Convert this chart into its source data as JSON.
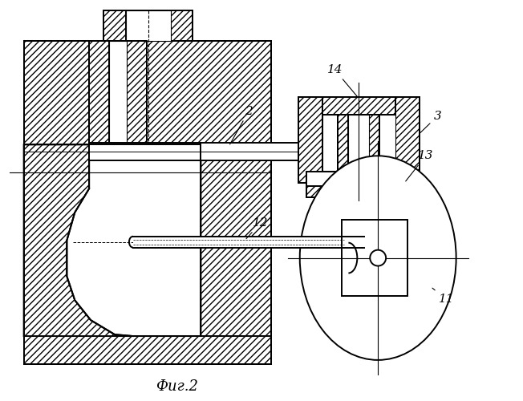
{
  "title": "Фиг.2",
  "bg_color": "#ffffff",
  "hatch": "////",
  "lw": 1.4
}
